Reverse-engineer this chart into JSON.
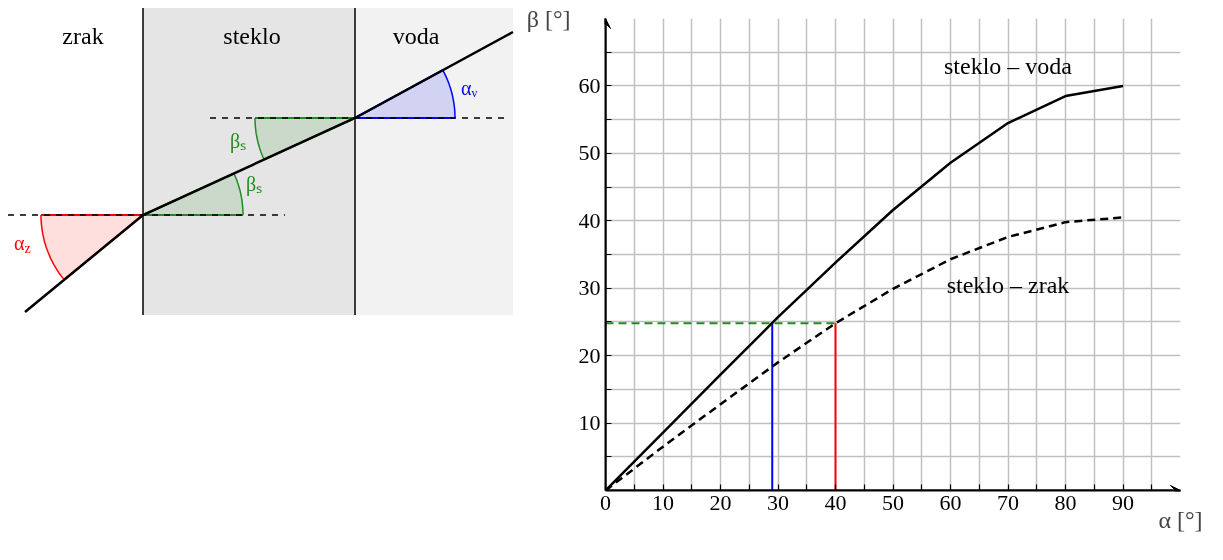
{
  "chart_data": [
    {
      "type": "other",
      "annotations": [
        "zrak",
        "steklo",
        "voda",
        "α$_{z}$",
        "βₛ",
        "βₛ",
        "αᵥ"
      ]
    },
    {
      "type": "line",
      "xlabel": "α [°]",
      "ylabel": "β [°]",
      "x": [
        0,
        10,
        20,
        30,
        40,
        50,
        60,
        70,
        80,
        90
      ],
      "series": [
        {
          "name": "steklo – voda",
          "color": "#000000",
          "line_style": "solid",
          "values": [
            0,
            8.6,
            17.2,
            25.7,
            33.8,
            41.6,
            48.6,
            54.5,
            58.5,
            60
          ]
        },
        {
          "name": "steklo – zrak",
          "color": "#000000",
          "line_style": "dashed",
          "values": [
            0,
            6.5,
            12.8,
            19,
            24.8,
            29.9,
            34.3,
            37.6,
            39.8,
            40.5
          ]
        }
      ],
      "ref_lines": [
        {
          "axis": "y",
          "value": 24.8,
          "color": "#228b22",
          "line_style": "dashed"
        },
        {
          "axis": "x",
          "value": 29,
          "color": "#0000ff",
          "line_style": "solid"
        },
        {
          "axis": "x",
          "value": 40,
          "color": "#ff0000",
          "line_style": "solid"
        }
      ],
      "xlim": [
        0,
        100
      ],
      "ylim": [
        0,
        70
      ],
      "xticks": [
        0,
        {
          "value": 5,
          "label": null
        },
        10,
        {
          "value": 15,
          "label": null
        },
        20,
        {
          "value": 25,
          "label": null
        },
        30,
        {
          "value": 35,
          "label": null
        },
        40,
        {
          "value": 45,
          "label": null
        },
        50,
        {
          "value": 55,
          "label": null
        },
        60,
        {
          "value": 65,
          "label": null
        },
        70,
        {
          "value": 75,
          "label": null
        },
        80,
        {
          "value": 85,
          "label": null
        },
        90,
        {
          "value": 95,
          "label": null
        }
      ],
      "yticks": [
        {
          "value": 5,
          "label": null
        },
        10,
        {
          "value": 15,
          "label": null
        },
        20,
        {
          "value": 25,
          "label": null
        },
        30,
        {
          "value": 35,
          "label": null
        },
        40,
        {
          "value": 45,
          "label": null
        },
        50,
        {
          "value": 55,
          "label": null
        },
        60,
        {
          "value": 65,
          "label": null
        }
      ],
      "grid": true,
      "legend": false
    }
  ]
}
